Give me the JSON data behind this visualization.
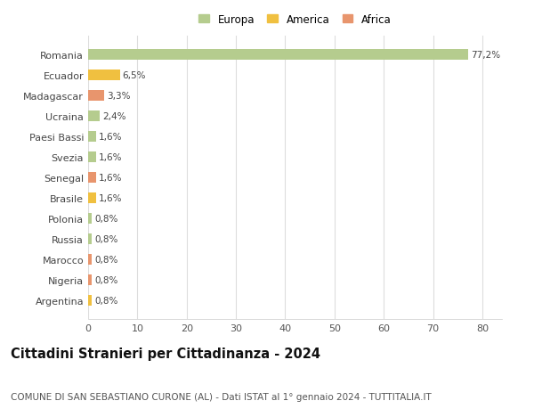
{
  "countries": [
    "Romania",
    "Ecuador",
    "Madagascar",
    "Ucraina",
    "Paesi Bassi",
    "Svezia",
    "Senegal",
    "Brasile",
    "Polonia",
    "Russia",
    "Marocco",
    "Nigeria",
    "Argentina"
  ],
  "values": [
    77.2,
    6.5,
    3.3,
    2.4,
    1.6,
    1.6,
    1.6,
    1.6,
    0.8,
    0.8,
    0.8,
    0.8,
    0.8
  ],
  "labels": [
    "77,2%",
    "6,5%",
    "3,3%",
    "2,4%",
    "1,6%",
    "1,6%",
    "1,6%",
    "1,6%",
    "0,8%",
    "0,8%",
    "0,8%",
    "0,8%",
    "0,8%"
  ],
  "continents": [
    "Europa",
    "America",
    "Africa",
    "Europa",
    "Europa",
    "Europa",
    "Africa",
    "America",
    "Europa",
    "Europa",
    "Africa",
    "Africa",
    "America"
  ],
  "continent_colors": {
    "Europa": "#b5cc8e",
    "America": "#f0c040",
    "Africa": "#e8956d"
  },
  "xlim": [
    0,
    84
  ],
  "xticks": [
    0,
    10,
    20,
    30,
    40,
    50,
    60,
    70,
    80
  ],
  "background_color": "#ffffff",
  "grid_color": "#dddddd",
  "title": "Cittadini Stranieri per Cittadinanza - 2024",
  "subtitle": "COMUNE DI SAN SEBASTIANO CURONE (AL) - Dati ISTAT al 1° gennaio 2024 - TUTTITALIA.IT",
  "title_fontsize": 10.5,
  "subtitle_fontsize": 7.5,
  "bar_height": 0.55
}
